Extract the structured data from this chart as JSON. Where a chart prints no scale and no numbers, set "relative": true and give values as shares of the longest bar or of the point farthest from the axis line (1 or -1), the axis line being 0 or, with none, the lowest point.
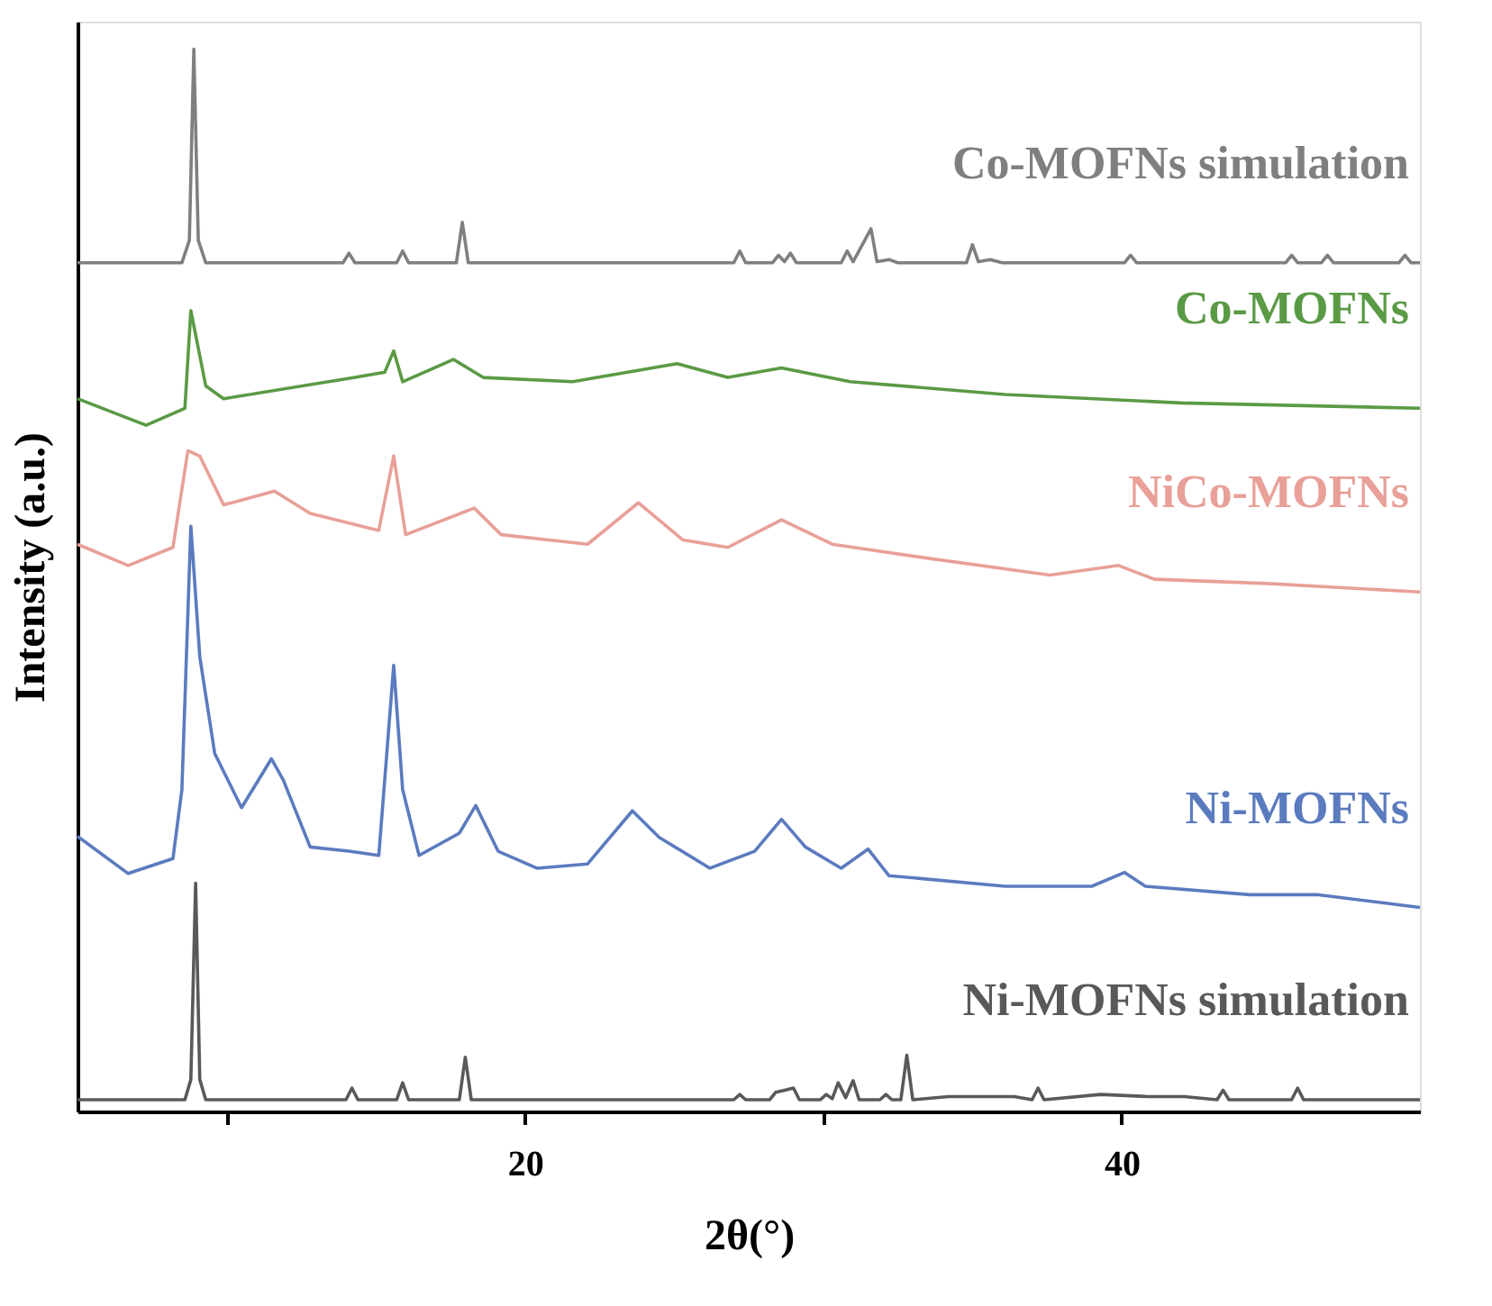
{
  "chart_data": {
    "type": "line",
    "relative": true,
    "xlabel": "2θ(°)",
    "ylabel": "Intensity (a.u.)",
    "xlim": [
      5,
      50
    ],
    "xticks": [
      {
        "value": 10,
        "label": null
      },
      20,
      {
        "value": 30,
        "label": null
      },
      40
    ],
    "tick_labels": "x",
    "grid": false,
    "marker": "none",
    "line_style": "solid",
    "series": [
      {
        "name": "Co-MOFNs simulation",
        "color": "#7f7f7f",
        "x": [
          5,
          8.5,
          8.75,
          8.9,
          9.05,
          9.3,
          13.9,
          14.1,
          14.3,
          15.7,
          15.9,
          16.1,
          17.7,
          17.9,
          18.1,
          27.0,
          27.2,
          27.4,
          28.3,
          28.5,
          28.7,
          28.9,
          29.1,
          30.6,
          30.8,
          31.0,
          31.6,
          31.8,
          32.2,
          32.5,
          34.8,
          35.0,
          35.2,
          35.6,
          36,
          40.1,
          40.3,
          40.5,
          45.5,
          45.7,
          45.9,
          46.7,
          46.9,
          47.1,
          49.3,
          49.5,
          49.7,
          50
        ],
        "values": [
          0.799,
          0.799,
          0.82,
          1.0,
          0.82,
          0.799,
          0.799,
          0.808,
          0.799,
          0.799,
          0.81,
          0.799,
          0.799,
          0.837,
          0.799,
          0.799,
          0.81,
          0.799,
          0.799,
          0.806,
          0.8,
          0.808,
          0.799,
          0.799,
          0.81,
          0.8,
          0.831,
          0.8,
          0.802,
          0.799,
          0.799,
          0.816,
          0.8,
          0.802,
          0.799,
          0.799,
          0.806,
          0.799,
          0.799,
          0.806,
          0.799,
          0.799,
          0.806,
          0.799,
          0.799,
          0.806,
          0.799,
          0.799
        ]
      },
      {
        "name": "Co-MOFNs",
        "color": "#5a9a45",
        "x": [
          5,
          7.3,
          8.6,
          8.8,
          9.3,
          9.9,
          14.3,
          15.3,
          15.6,
          15.9,
          17.6,
          18.6,
          21.6,
          25.1,
          26.8,
          28.6,
          30.9,
          36.1,
          42.0,
          50
        ],
        "values": [
          0.671,
          0.646,
          0.662,
          0.754,
          0.683,
          0.671,
          0.691,
          0.696,
          0.716,
          0.687,
          0.708,
          0.691,
          0.687,
          0.704,
          0.691,
          0.7,
          0.687,
          0.675,
          0.667,
          0.662
        ]
      },
      {
        "name": "NiCo-MOFNs",
        "color": "#e8a098",
        "x": [
          5,
          6.7,
          8.2,
          8.7,
          9.1,
          9.9,
          11.6,
          12.8,
          15.1,
          15.6,
          16.0,
          18.3,
          19.2,
          22.1,
          23.8,
          25.3,
          26.8,
          28.6,
          30.3,
          33.2,
          37.6,
          39.9,
          41.1,
          44.9,
          50
        ],
        "values": [
          0.534,
          0.514,
          0.531,
          0.622,
          0.617,
          0.571,
          0.584,
          0.563,
          0.547,
          0.617,
          0.543,
          0.568,
          0.543,
          0.534,
          0.573,
          0.538,
          0.531,
          0.557,
          0.534,
          0.522,
          0.505,
          0.514,
          0.501,
          0.497,
          0.489
        ]
      },
      {
        "name": "Ni-MOFNs",
        "color": "#5b7bbf",
        "x": [
          5,
          6.7,
          8.2,
          8.5,
          8.8,
          9.1,
          9.6,
          10.5,
          11.5,
          11.9,
          12.8,
          14.1,
          15.1,
          15.6,
          15.9,
          16.45,
          17.8,
          18.35,
          19.1,
          20.4,
          22.1,
          23.6,
          24.5,
          26.2,
          27.7,
          28.6,
          29.4,
          30.6,
          31.5,
          32.2,
          36.1,
          39.0,
          40.1,
          40.8,
          44.3,
          46.6,
          50
        ],
        "values": [
          0.259,
          0.224,
          0.238,
          0.303,
          0.551,
          0.428,
          0.337,
          0.286,
          0.332,
          0.312,
          0.249,
          0.245,
          0.241,
          0.42,
          0.303,
          0.241,
          0.262,
          0.288,
          0.245,
          0.229,
          0.233,
          0.283,
          0.258,
          0.229,
          0.245,
          0.275,
          0.249,
          0.229,
          0.247,
          0.222,
          0.212,
          0.212,
          0.225,
          0.212,
          0.204,
          0.204,
          0.192
        ]
      },
      {
        "name": "Ni-MOFNs simulation",
        "color": "#595959",
        "x": [
          5,
          8.6,
          8.8,
          8.96,
          9.1,
          9.3,
          14.0,
          14.2,
          14.4,
          15.7,
          15.9,
          16.1,
          17.8,
          18.0,
          18.2,
          27.0,
          27.2,
          27.4,
          28.2,
          28.4,
          28.7,
          29.0,
          29.2,
          29.9,
          30.1,
          30.3,
          30.5,
          30.75,
          31.0,
          31.2,
          31.9,
          32.1,
          32.3,
          32.6,
          32.8,
          33.0,
          34.2,
          35.3,
          35.8,
          36.4,
          37.0,
          37.2,
          37.4,
          39.3,
          40.9,
          42.1,
          43.2,
          43.4,
          43.6,
          45.7,
          45.9,
          46.1,
          50
        ],
        "values": [
          0.011,
          0.011,
          0.03,
          0.215,
          0.03,
          0.011,
          0.011,
          0.022,
          0.011,
          0.011,
          0.027,
          0.011,
          0.011,
          0.051,
          0.011,
          0.011,
          0.016,
          0.011,
          0.011,
          0.018,
          0.02,
          0.022,
          0.011,
          0.011,
          0.016,
          0.012,
          0.027,
          0.013,
          0.029,
          0.011,
          0.011,
          0.016,
          0.011,
          0.011,
          0.053,
          0.011,
          0.014,
          0.014,
          0.014,
          0.014,
          0.011,
          0.022,
          0.011,
          0.016,
          0.014,
          0.014,
          0.011,
          0.02,
          0.011,
          0.011,
          0.022,
          0.011,
          0.011
        ]
      }
    ]
  }
}
